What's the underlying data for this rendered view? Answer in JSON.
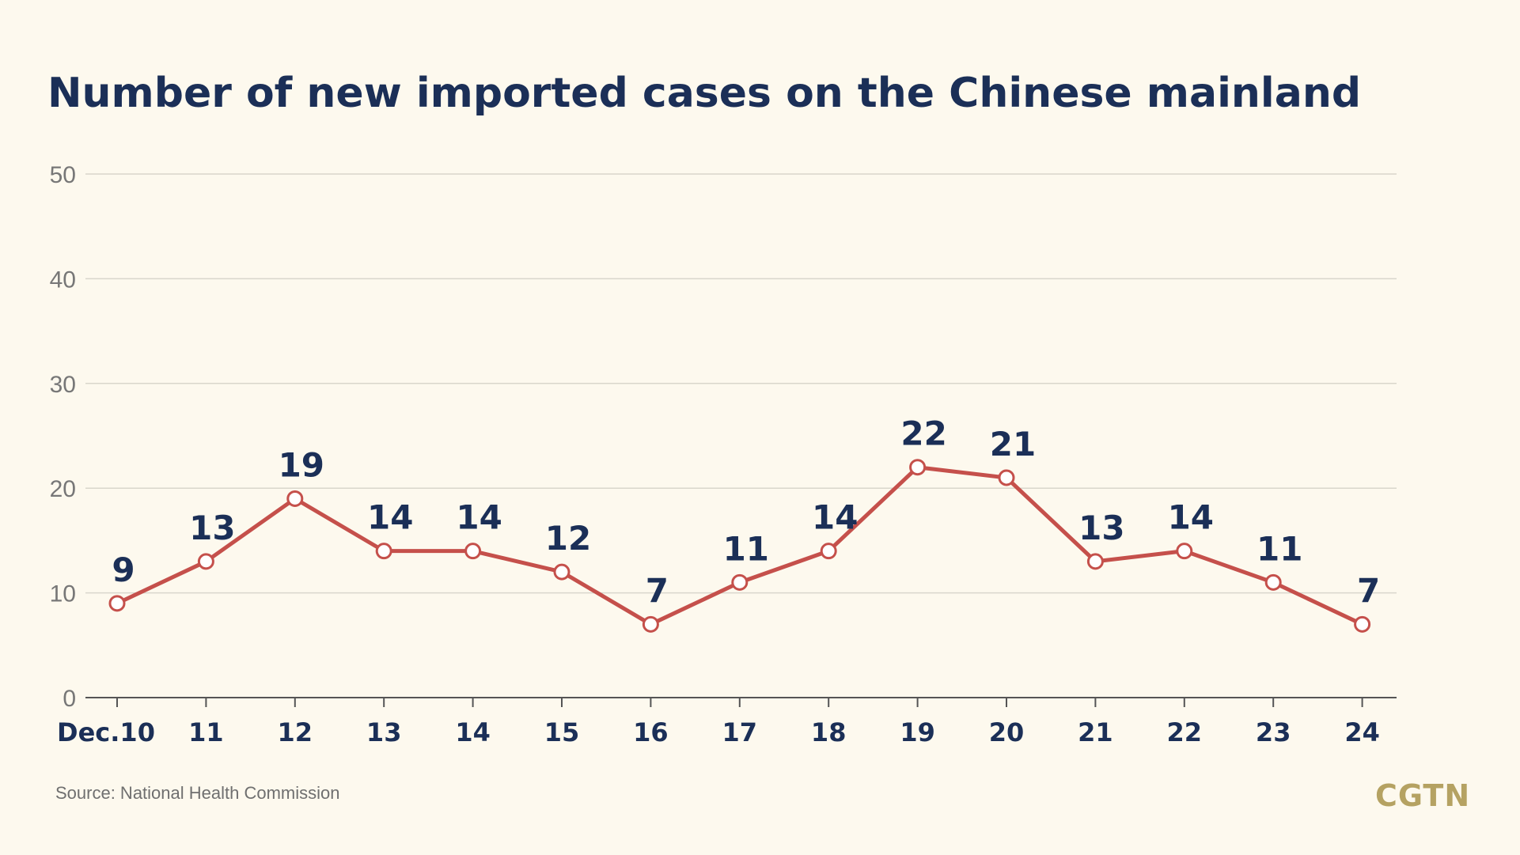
{
  "title": "Number of new imported cases on the Chinese mainland",
  "source": "Source: National Health Commission",
  "logo": "CGTN",
  "colors": {
    "background": "#fdf9ee",
    "title": "#1b2f57",
    "line": "#c5504b",
    "marker_fill": "#ffffff",
    "grid": "#d9d6cc",
    "axis": "#555555",
    "y_tick": "#777777",
    "logo": "#b5a262"
  },
  "chart_data": {
    "type": "line",
    "title": "Number of new imported cases on the Chinese mainland",
    "xlabel": "",
    "ylabel": "",
    "categories": [
      "Dec.10",
      "11",
      "12",
      "13",
      "14",
      "15",
      "16",
      "17",
      "18",
      "19",
      "20",
      "21",
      "22",
      "23",
      "24"
    ],
    "series": [
      {
        "values": [
          9,
          13,
          19,
          14,
          14,
          12,
          7,
          11,
          14,
          22,
          21,
          13,
          14,
          11,
          7
        ],
        "labels": [
          "9",
          "13",
          "19",
          "14",
          "14",
          "12",
          "7",
          "11",
          "14",
          "22",
          "21",
          "13",
          "14",
          "11",
          "7"
        ]
      }
    ],
    "ylim": [
      0,
      50
    ],
    "yticks": [
      "0",
      "10",
      "20",
      "30",
      "40",
      "50"
    ],
    "grid": true,
    "legend": "none"
  }
}
